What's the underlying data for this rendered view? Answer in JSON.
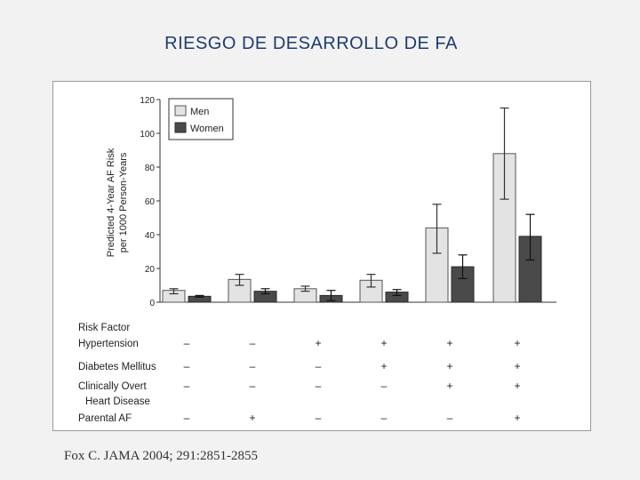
{
  "slide": {
    "title": "RIESGO DE DESARROLLO DE FA",
    "source": "Fox C. JAMA 2004; 291:2851-2855"
  },
  "colors": {
    "men": "#e3e3e3",
    "women": "#4a4a4a",
    "title": "#1f3c6e"
  },
  "chart_data": {
    "type": "bar",
    "ylabel": [
      "Predicted 4-Year AF Risk",
      "per 1000 Person-Years"
    ],
    "ylim": [
      0,
      120
    ],
    "yticks": [
      0,
      20,
      40,
      60,
      80,
      100,
      120
    ],
    "legend_position": "top-left",
    "series": [
      {
        "name": "Men",
        "values": [
          7,
          13.5,
          8,
          13,
          44,
          88
        ],
        "err_low": [
          5,
          10,
          6.5,
          9,
          29,
          61
        ],
        "err_high": [
          8,
          16.5,
          9.5,
          16.5,
          58,
          115
        ]
      },
      {
        "name": "Women",
        "values": [
          3.5,
          6.5,
          4,
          6,
          21,
          39
        ],
        "err_low": [
          3,
          5,
          1,
          4,
          14,
          25
        ],
        "err_high": [
          4,
          8,
          7,
          7.5,
          28,
          52
        ]
      }
    ],
    "risk_factor_header": "Risk Factor",
    "risk_factors": [
      {
        "label": [
          "Hypertension"
        ],
        "marks": [
          "–",
          "–",
          "+",
          "+",
          "+",
          "+"
        ]
      },
      {
        "label": [
          "Diabetes Mellitus"
        ],
        "marks": [
          "–",
          "–",
          "–",
          "+",
          "+",
          "+"
        ]
      },
      {
        "label": [
          "Clinically Overt",
          "Heart Disease"
        ],
        "marks": [
          "–",
          "–",
          "–",
          "–",
          "+",
          "+"
        ]
      },
      {
        "label": [
          "Parental AF"
        ],
        "marks": [
          "–",
          "+",
          "–",
          "–",
          "–",
          "+"
        ]
      }
    ]
  }
}
